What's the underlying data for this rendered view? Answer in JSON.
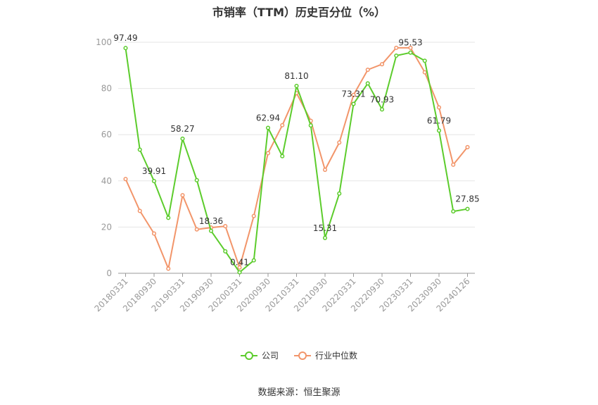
{
  "chart_data": {
    "type": "line",
    "title": "市销率（TTM）历史百分位（%）",
    "xlabel": "",
    "ylabel": "",
    "ylim": [
      0,
      100
    ],
    "yticks": [
      0,
      20,
      40,
      60,
      80,
      100
    ],
    "grid": true,
    "legend_position": "bottom",
    "x": [
      "20180331",
      "20180630",
      "20180930",
      "20181231",
      "20190331",
      "20190630",
      "20190930",
      "20191231",
      "20200331",
      "20200630",
      "20200930",
      "20201231",
      "20210331",
      "20210630",
      "20210930",
      "20211231",
      "20220331",
      "20220630",
      "20220930",
      "20221231",
      "20230331",
      "20230630",
      "20230930",
      "20231231",
      "20240126"
    ],
    "x_tick_labels": [
      "20180331",
      "20180930",
      "20190331",
      "20190930",
      "20200331",
      "20200930",
      "20210331",
      "20210930",
      "20220331",
      "20220930",
      "20230331",
      "20230930",
      "20240126"
    ],
    "series": [
      {
        "name": "公司",
        "color": "#5ccc2c",
        "values": [
          97.49,
          53.5,
          39.91,
          24.0,
          58.27,
          40.3,
          18.36,
          9.5,
          0.41,
          5.6,
          62.94,
          50.7,
          81.1,
          64.0,
          15.31,
          34.5,
          73.31,
          82.2,
          70.93,
          94.2,
          95.53,
          92.0,
          61.79,
          26.8,
          27.85
        ],
        "labels": [
          "97.49",
          null,
          "39.91",
          null,
          "58.27",
          null,
          "18.36",
          null,
          "0.41",
          null,
          "62.94",
          null,
          "81.10",
          null,
          "15.31",
          null,
          "73.31",
          null,
          "70.93",
          null,
          "95.53",
          null,
          "61.79",
          null,
          "27.85"
        ]
      },
      {
        "name": "行业中位数",
        "color": "#f2956a",
        "values": [
          40.8,
          27.0,
          17.2,
          2.0,
          33.8,
          19.0,
          19.8,
          20.4,
          2.5,
          24.8,
          52.0,
          64.1,
          78.0,
          66.0,
          44.8,
          56.6,
          77.2,
          88.1,
          90.5,
          97.6,
          97.6,
          87.0,
          71.8,
          47.0,
          54.6
        ]
      }
    ]
  },
  "source": "数据来源：恒生聚源"
}
